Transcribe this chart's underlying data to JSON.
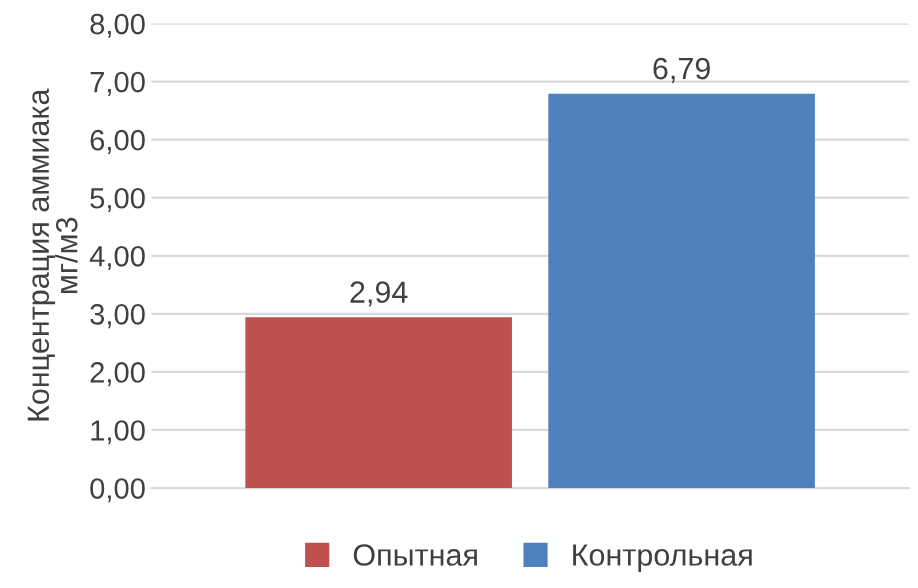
{
  "chart_data": {
    "type": "bar",
    "ylabel": "Концентрация аммиака\nмг/м3",
    "categories": [
      null
    ],
    "series": [
      {
        "name": "Опытная",
        "color": "#c0504d",
        "values": [
          2.94
        ],
        "value_labels": [
          "2,94"
        ]
      },
      {
        "name": "Контрольная",
        "color": "#4f81bd",
        "values": [
          6.79
        ],
        "value_labels": [
          "6,79"
        ]
      }
    ],
    "ylim": [
      0,
      8
    ],
    "yticks": [
      {
        "value": 0,
        "label": "0,00"
      },
      {
        "value": 1,
        "label": "1,00"
      },
      {
        "value": 2,
        "label": "2,00"
      },
      {
        "value": 3,
        "label": "3,00"
      },
      {
        "value": 4,
        "label": "4,00"
      },
      {
        "value": 5,
        "label": "5,00"
      },
      {
        "value": 6,
        "label": "6,00"
      },
      {
        "value": 7,
        "label": "7,00"
      },
      {
        "value": 8,
        "label": "8,00"
      }
    ],
    "grid": "y",
    "legend": "bottom"
  }
}
